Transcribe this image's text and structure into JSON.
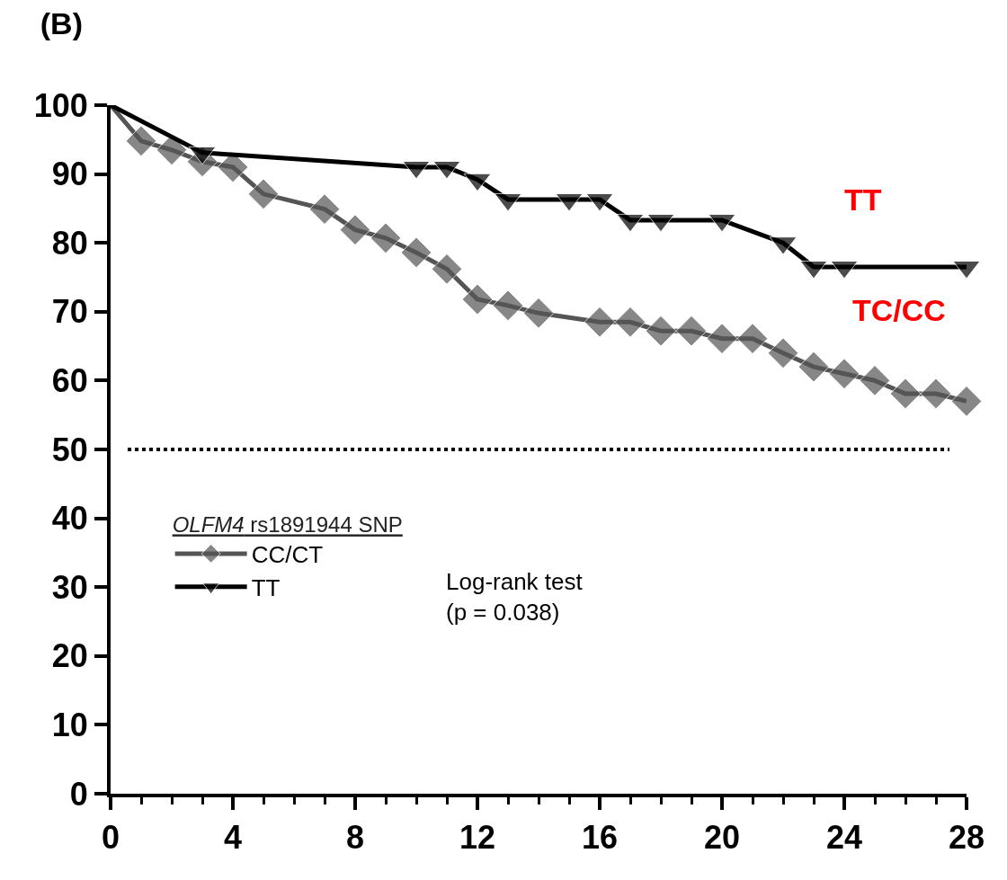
{
  "chart_data": {
    "type": "line",
    "title": "(B)",
    "x": [
      0,
      1,
      2,
      3,
      4,
      5,
      7,
      8,
      9,
      10,
      11,
      12,
      13,
      14,
      16,
      17,
      18,
      19,
      20,
      21,
      22,
      23,
      24,
      25,
      26,
      27,
      28
    ],
    "series": [
      {
        "name": "CC/CT",
        "color": "#555555",
        "marker": "diamond",
        "values": [
          100,
          94.8,
          93.5,
          91.8,
          91,
          87.1,
          84.9,
          81.9,
          80.7,
          78.6,
          76.2,
          71.8,
          70.9,
          69.8,
          68.5,
          68.5,
          67.2,
          67.2,
          66.1,
          66.1,
          64,
          62,
          61,
          60,
          58.1,
          58.1,
          57
        ]
      },
      {
        "name": "TT",
        "color": "#000000",
        "marker": "triangle",
        "x": [
          0,
          3,
          10,
          11,
          12,
          13,
          15,
          16,
          17,
          18,
          20,
          22,
          23,
          24,
          28
        ],
        "values": [
          100,
          93.1,
          91,
          91,
          89.2,
          86.3,
          86.3,
          86.3,
          83.3,
          83.3,
          83.3,
          80,
          76.5,
          76.5,
          76.5
        ]
      }
    ],
    "legend": "bottom left",
    "legend_title": "OLFM4 rs1891944 SNP",
    "annotations": [
      "Log-rank test\n(p = 0.038)",
      "TT",
      "TC/CC"
    ],
    "ref_lines": [
      {
        "axis": "y",
        "value": 50,
        "color": "#000000",
        "line_style": "dotted"
      }
    ],
    "xlim": [
      0,
      28
    ],
    "ylim": [
      0,
      100
    ],
    "xticks": [
      0,
      {
        "value": 1,
        "label": null
      },
      {
        "value": 2,
        "label": null
      },
      {
        "value": 3,
        "label": null
      },
      4,
      {
        "value": 5,
        "label": null
      },
      {
        "value": 6,
        "label": null
      },
      {
        "value": 7,
        "label": null
      },
      8,
      {
        "value": 9,
        "label": null
      },
      {
        "value": 10,
        "label": null
      },
      {
        "value": 11,
        "label": null
      },
      12,
      {
        "value": 13,
        "label": null
      },
      {
        "value": 14,
        "label": null
      },
      {
        "value": 15,
        "label": null
      },
      16,
      {
        "value": 17,
        "label": null
      },
      {
        "value": 18,
        "label": null
      },
      {
        "value": 19,
        "label": null
      },
      20,
      {
        "value": 21,
        "label": null
      },
      {
        "value": 22,
        "label": null
      },
      {
        "value": 23,
        "label": null
      },
      24,
      {
        "value": 25,
        "label": null
      },
      {
        "value": 26,
        "label": null
      },
      {
        "value": 27,
        "label": null
      },
      28
    ],
    "yticks": [
      0,
      10,
      20,
      30,
      40,
      50,
      60,
      70,
      80,
      90,
      100
    ]
  }
}
